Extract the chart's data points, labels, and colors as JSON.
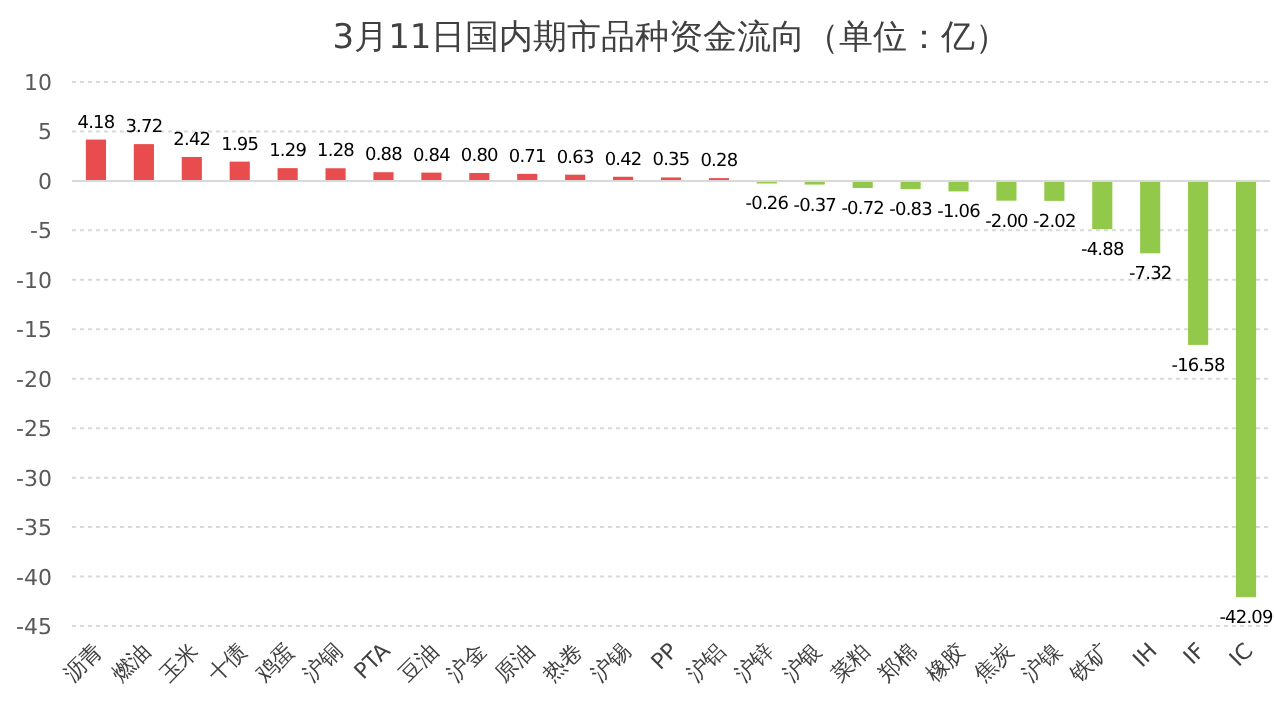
{
  "chart_data": {
    "type": "bar",
    "title": "3月11日国内期市品种资金流向（单位：亿）",
    "categories": [
      "沥青",
      "燃油",
      "玉米",
      "十债",
      "鸡蛋",
      "沪铜",
      "PTA",
      "豆油",
      "沪金",
      "原油",
      "热卷",
      "沪锡",
      "PP",
      "沪铝",
      "沪锌",
      "沪银",
      "菜粕",
      "郑棉",
      "橡胶",
      "焦炭",
      "沪镍",
      "铁矿",
      "IH",
      "IF",
      "IC"
    ],
    "values": [
      4.18,
      3.72,
      2.42,
      1.95,
      1.29,
      1.28,
      0.88,
      0.84,
      0.8,
      0.71,
      0.63,
      0.42,
      0.35,
      0.28,
      -0.26,
      -0.37,
      -0.72,
      -0.83,
      -1.06,
      -2.0,
      -2.02,
      -4.88,
      -7.32,
      -16.58,
      -42.09
    ],
    "colors": [
      "#e84c4c",
      "#e84c4c",
      "#e84c4c",
      "#e84c4c",
      "#e84c4c",
      "#e84c4c",
      "#e84c4c",
      "#e84c4c",
      "#e84c4c",
      "#e84c4c",
      "#e84c4c",
      "#e84c4c",
      "#e84c4c",
      "#e84c4c",
      "#92c94a",
      "#92c94a",
      "#92c94a",
      "#92c94a",
      "#92c94a",
      "#92c94a",
      "#92c94a",
      "#92c94a",
      "#92c94a",
      "#92c94a",
      "#92c94a"
    ],
    "value_labels": [
      "4.18",
      "3.72",
      "2.42",
      "1.95",
      "1.29",
      "1.28",
      "0.88",
      "0.84",
      "0.80",
      "0.71",
      "0.63",
      "0.42",
      "0.35",
      "0.28",
      "-0.26",
      "-0.37",
      "-0.72",
      "-0.83",
      "-1.06",
      "-2.00",
      "-2.02",
      "-4.88",
      "-7.32",
      "-16.58",
      "-42.09"
    ],
    "ylim": [
      -45,
      10
    ],
    "yticks": [
      -45,
      -40,
      -35,
      -30,
      -25,
      -20,
      -15,
      -10,
      -5,
      0,
      5,
      10
    ],
    "grid": "y"
  }
}
